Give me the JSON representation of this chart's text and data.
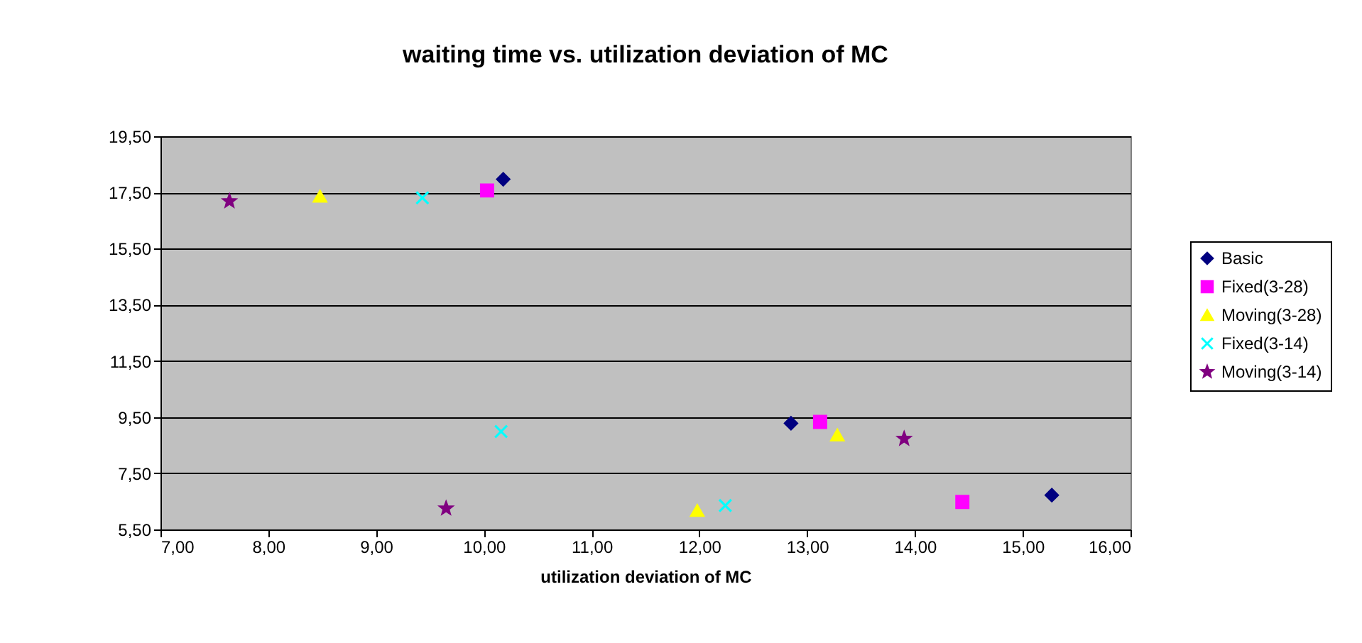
{
  "chart_data": {
    "type": "scatter",
    "title": "waiting time vs. utilization deviation of MC",
    "xlabel": "utilization deviation of MC",
    "series": [
      {
        "name": "Basic",
        "color": "#000080",
        "marker": "diamond",
        "x": [
          10.18,
          12.85,
          15.27
        ],
        "values": [
          17.97,
          9.28,
          6.72
        ]
      },
      {
        "name": "Fixed(3-28)",
        "color": "#ff00ff",
        "marker": "square",
        "x": [
          10.03,
          13.12,
          14.44
        ],
        "values": [
          17.57,
          9.33,
          6.48
        ]
      },
      {
        "name": "Moving(3-28)",
        "color": "#ffff00",
        "marker": "triangle",
        "x": [
          8.48,
          13.28,
          11.98
        ],
        "values": [
          17.36,
          8.86,
          6.17
        ]
      },
      {
        "name": "Fixed(3-14)",
        "color": "#00ffff",
        "marker": "cross",
        "x": [
          9.43,
          10.16,
          12.24
        ],
        "values": [
          17.31,
          8.99,
          6.35
        ]
      },
      {
        "name": "Moving(3-14)",
        "color": "#800080",
        "marker": "star",
        "x": [
          7.64,
          13.9,
          9.65
        ],
        "values": [
          17.19,
          8.73,
          6.25
        ]
      }
    ],
    "xlim": [
      7,
      16
    ],
    "xticks": [
      {
        "value": 7,
        "label": "7,00"
      },
      {
        "value": 8,
        "label": "8,00"
      },
      {
        "value": 9,
        "label": "9,00"
      },
      {
        "value": 10,
        "label": "10,00"
      },
      {
        "value": 11,
        "label": "11,00"
      },
      {
        "value": 12,
        "label": "12,00"
      },
      {
        "value": 13,
        "label": "13,00"
      },
      {
        "value": 14,
        "label": "14,00"
      },
      {
        "value": 15,
        "label": "15,00"
      },
      {
        "value": 16,
        "label": "16,00"
      }
    ],
    "ylim": [
      5.5,
      19.5
    ],
    "yticks": [
      {
        "value": 5.5,
        "label": "5,50"
      },
      {
        "value": 7.5,
        "label": "7,50"
      },
      {
        "value": 9.5,
        "label": "9,50"
      },
      {
        "value": 11.5,
        "label": "11,50"
      },
      {
        "value": 13.5,
        "label": "13,50"
      },
      {
        "value": 15.5,
        "label": "15,50"
      },
      {
        "value": 17.5,
        "label": "17,50"
      },
      {
        "value": 19.5,
        "label": "19,50"
      }
    ],
    "grid": "y",
    "legend": "right"
  }
}
